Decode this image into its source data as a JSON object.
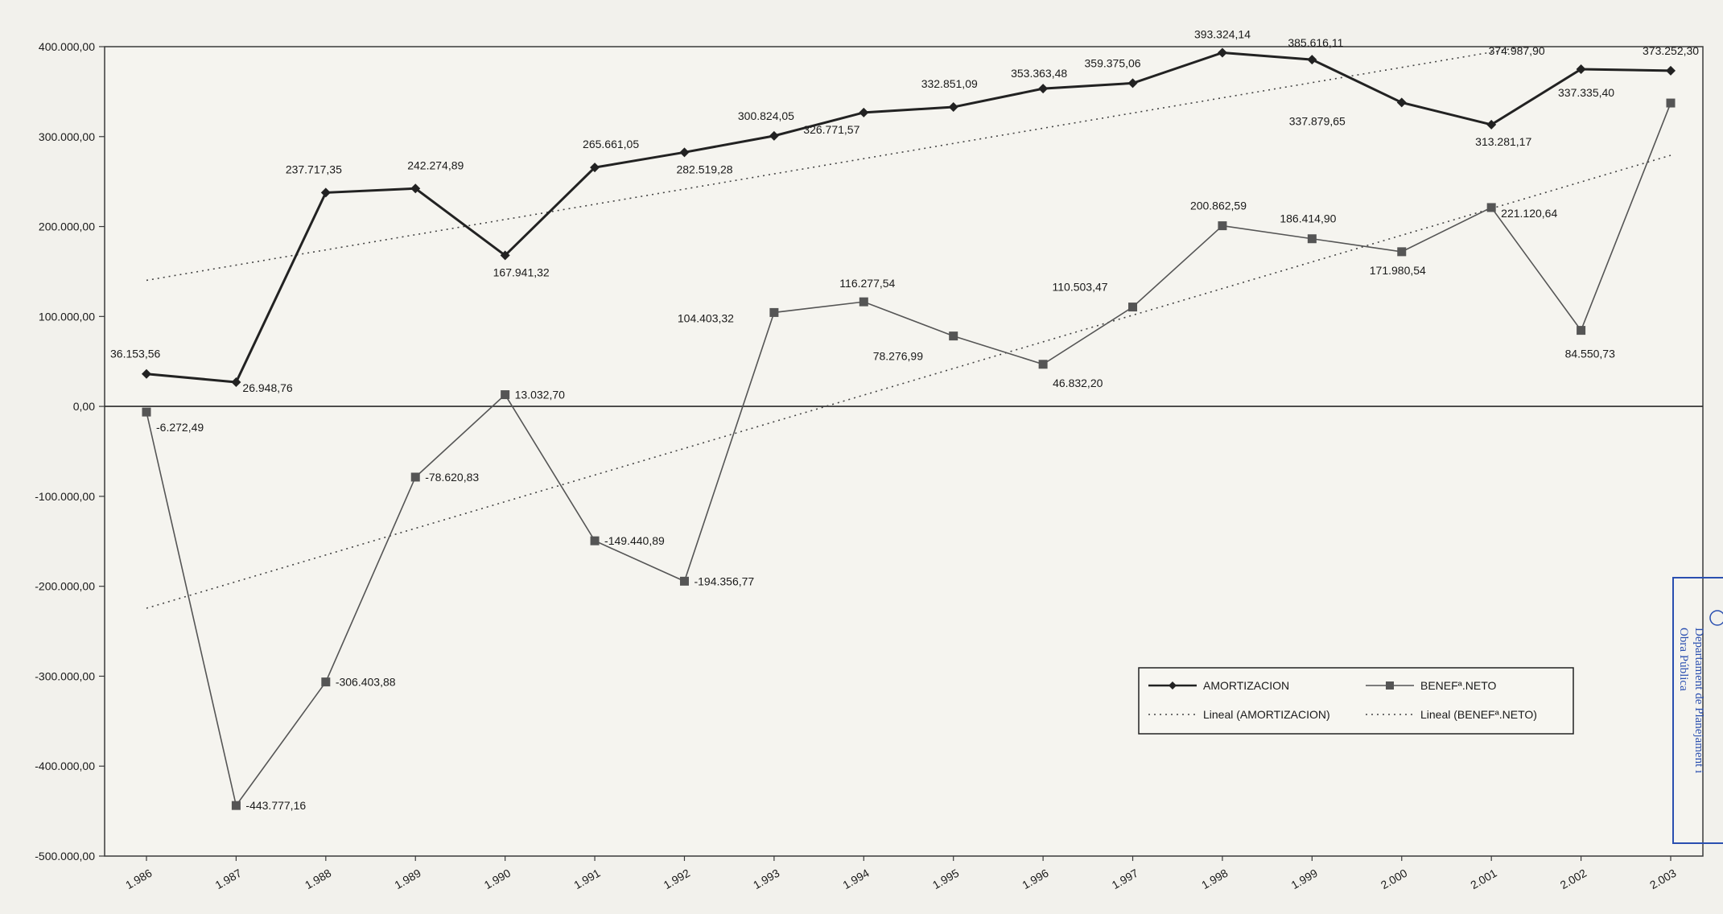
{
  "chart_data": {
    "type": "line",
    "categories": [
      "1.986",
      "1.987",
      "1.988",
      "1.989",
      "1.990",
      "1.991",
      "1.992",
      "1.993",
      "1.994",
      "1.995",
      "1.996",
      "1.997",
      "1.998",
      "1.999",
      "2.000",
      "2.001",
      "2.002",
      "2.003"
    ],
    "series": [
      {
        "name": "AMORTIZACION",
        "color": "#222222",
        "marker": "diamond",
        "values": [
          36153.56,
          26948.76,
          237717.35,
          242274.89,
          167941.32,
          265661.05,
          282519.28,
          300824.05,
          326771.57,
          332851.09,
          353363.48,
          359375.06,
          393324.14,
          385616.11,
          337879.65,
          313281.17,
          374987.9,
          373252.3
        ],
        "labels": [
          "36.153,56",
          "26.948,76",
          "237.717,35",
          "242.274,89",
          "167.941,32",
          "265.661,05",
          "282.519,28",
          "300.824,05",
          "326.771,57",
          "332.851,09",
          "353.363,48",
          "359.375,06",
          "393.324,14",
          "385.616,11",
          "337.879,65",
          "313.281,17",
          "374.987,90",
          "373.252,30"
        ]
      },
      {
        "name": "BENEFª.NETO",
        "color": "#555555",
        "marker": "square",
        "values": [
          -6272.49,
          -443777.16,
          -306403.88,
          -78620.83,
          13032.7,
          -149440.89,
          -194356.77,
          104403.32,
          116277.54,
          78276.99,
          46832.2,
          110503.47,
          200862.59,
          186414.9,
          171980.54,
          221120.64,
          84550.73,
          337335.4
        ],
        "labels": [
          "-6.272,49",
          "-443.777,16",
          "-306.403,88",
          "-78.620,83",
          "13.032,70",
          "-149.440,89",
          "-194.356,77",
          "104.403,32",
          "116.277,54",
          "78.276,99",
          "46.832,20",
          "110.503,47",
          "200.862,59",
          "186.414,90",
          "171.980,54",
          "221.120,64",
          "84.550,73",
          "337.335,40"
        ]
      }
    ],
    "trendlines": [
      {
        "name": "Lineal (AMORTIZACION)",
        "of": "AMORTIZACION",
        "style": "dotted"
      },
      {
        "name": "Lineal (BENEFª.NETO)",
        "of": "BENEFª.NETO",
        "style": "dotted"
      }
    ],
    "y_ticks": [
      "400.000,00",
      "300.000,00",
      "200.000,00",
      "100.000,00",
      "0,00",
      "-100.000,00",
      "-200.000,00",
      "-300.000,00",
      "-400.000,00",
      "-500.000,00"
    ],
    "ylim": [
      -500000,
      400000
    ],
    "grid": false,
    "legend": "bottom-right",
    "title": "",
    "xlabel": "",
    "ylabel": ""
  },
  "stamp": {
    "line1": "Departament de Planejament i",
    "line2": "Obra Pública",
    "color": "#2a4fb0"
  }
}
